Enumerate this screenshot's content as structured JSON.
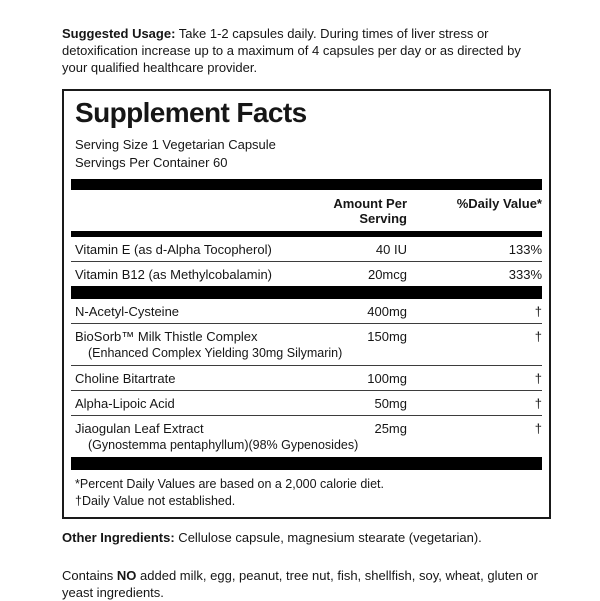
{
  "usage": {
    "label": "Suggested Usage:",
    "text": " Take 1-2 capsules daily. During times of liver stress or detoxification increase up to a maximum of 4 capsules per day or as directed by your qualified healthcare provider."
  },
  "facts": {
    "title": "Supplement Facts",
    "serving_size": "Serving Size 1 Vegetarian Capsule",
    "servings_per_container": "Servings Per Container 60",
    "col_amount": "Amount Per Serving",
    "col_dv": "%Daily Value*",
    "rows": [
      {
        "name": "Vitamin E (as d-Alpha Tocopherol)",
        "amount": "40 IU",
        "dv": "133%"
      },
      {
        "name": "Vitamin B12 (as Methylcobalamin)",
        "amount": "20mcg",
        "dv": "333%"
      },
      {
        "name": "N-Acetyl-Cysteine",
        "amount": "400mg",
        "dv": "†"
      },
      {
        "name": "BioSorb™ Milk Thistle Complex",
        "sub": "(Enhanced Complex Yielding 30mg Silymarin)",
        "amount": "150mg",
        "dv": "†"
      },
      {
        "name": "Choline Bitartrate",
        "amount": "100mg",
        "dv": "†"
      },
      {
        "name": "Alpha-Lipoic Acid",
        "amount": "50mg",
        "dv": "†"
      },
      {
        "name": "Jiaogulan Leaf Extract",
        "sub": "(Gynostemma pentaphyllum)(98% Gypenosides)",
        "amount": "25mg",
        "dv": "†"
      }
    ],
    "footnotes": [
      "*Percent Daily Values are based on a 2,000 calorie diet.",
      "†Daily Value not established."
    ]
  },
  "other_ingredients": {
    "label": "Other Ingredients:",
    "text": "  Cellulose capsule, magnesium stearate (vegetarian)."
  },
  "allergen": {
    "prefix": "Contains ",
    "bold": "NO",
    "text": " added milk, egg, peanut, tree nut, fish, shellfish, soy, wheat, gluten or yeast ingredients."
  },
  "colors": {
    "background": "#ffffff",
    "text": "#161616",
    "bar": "#000000"
  }
}
